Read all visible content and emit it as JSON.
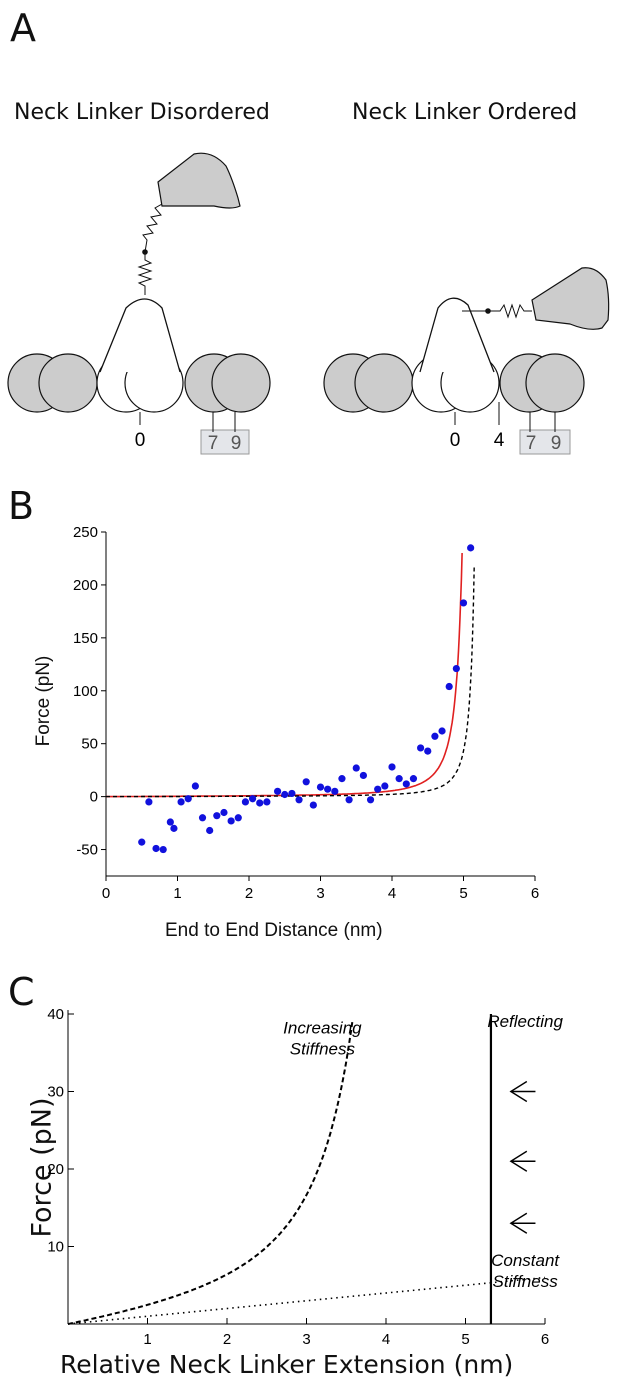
{
  "panels": {
    "a": {
      "letter": "A",
      "left_title": "Neck Linker Disordered",
      "right_title": "Neck Linker Ordered",
      "left_positions": [
        "0",
        "7",
        "9"
      ],
      "right_positions": [
        "0",
        "4",
        "7",
        "9"
      ]
    },
    "b": {
      "letter": "B"
    },
    "c": {
      "letter": "C"
    }
  },
  "colors": {
    "subunit_gray": "#cccccc",
    "highlight_box": "#e4e6ea",
    "fit_curve": "#e02020",
    "data_points": "#1111dd"
  },
  "chart_data": [
    {
      "type": "scatter",
      "panel": "B",
      "xlabel": "End to End Distance (nm)",
      "ylabel": "Force (pN)",
      "xlim": [
        0,
        6
      ],
      "ylim": [
        -75,
        250
      ],
      "xticks": [
        0,
        1,
        2,
        3,
        4,
        5,
        6
      ],
      "yticks": [
        -50,
        0,
        50,
        100,
        150,
        200,
        250
      ],
      "grid": false,
      "points": [
        [
          0.5,
          -43
        ],
        [
          0.6,
          -5
        ],
        [
          0.7,
          -49
        ],
        [
          0.8,
          -50
        ],
        [
          0.9,
          -24
        ],
        [
          0.95,
          -30
        ],
        [
          1.05,
          -5
        ],
        [
          1.15,
          -2
        ],
        [
          1.25,
          10
        ],
        [
          1.35,
          -20
        ],
        [
          1.45,
          -32
        ],
        [
          1.55,
          -18
        ],
        [
          1.65,
          -15
        ],
        [
          1.75,
          -23
        ],
        [
          1.85,
          -20
        ],
        [
          1.95,
          -5
        ],
        [
          2.05,
          -2
        ],
        [
          2.15,
          -6
        ],
        [
          2.25,
          -5
        ],
        [
          2.4,
          5
        ],
        [
          2.5,
          2
        ],
        [
          2.6,
          3
        ],
        [
          2.7,
          -3
        ],
        [
          2.8,
          14
        ],
        [
          2.9,
          -8
        ],
        [
          3.0,
          9
        ],
        [
          3.1,
          7
        ],
        [
          3.2,
          5
        ],
        [
          3.3,
          17
        ],
        [
          3.4,
          -3
        ],
        [
          3.5,
          27
        ],
        [
          3.6,
          20
        ],
        [
          3.7,
          -3
        ],
        [
          3.8,
          7
        ],
        [
          3.9,
          10
        ],
        [
          4.0,
          28
        ],
        [
          4.1,
          17
        ],
        [
          4.2,
          12
        ],
        [
          4.3,
          17
        ],
        [
          4.4,
          46
        ],
        [
          4.5,
          43
        ],
        [
          4.6,
          57
        ],
        [
          4.7,
          62
        ],
        [
          4.8,
          104
        ],
        [
          4.9,
          121
        ],
        [
          5.0,
          183
        ],
        [
          5.1,
          235
        ]
      ],
      "series": [
        {
          "style": "solid",
          "color": "#e02020",
          "model": "fit",
          "L": 5.15,
          "A": 1.0
        },
        {
          "style": "dashed",
          "color": "#000000",
          "model": "reference",
          "L": 5.27,
          "A": 0.45
        }
      ]
    },
    {
      "type": "line",
      "panel": "C",
      "xlabel": "Relative Neck Linker Extension (nm)",
      "ylabel": "Force (pN)",
      "xlim": [
        0,
        6
      ],
      "ylim": [
        0,
        40
      ],
      "xticks": [
        1,
        2,
        3,
        4,
        5,
        6
      ],
      "yticks": [
        10,
        20,
        30,
        40
      ],
      "grid": false,
      "annotations": [
        {
          "text": "Increasing",
          "at": [
            3.2,
            37.5
          ]
        },
        {
          "text": "Stiffness",
          "at": [
            3.2,
            34.8
          ]
        },
        {
          "text": "Reflecting",
          "at": [
            5.75,
            38.3
          ]
        },
        {
          "text": "Constant",
          "at": [
            5.75,
            7.5
          ]
        },
        {
          "text": "Stiffness",
          "at": [
            5.75,
            4.8
          ]
        }
      ],
      "series": [
        {
          "style": "dashed",
          "label": "Increasing Stiffness",
          "model": "wlc",
          "L": 4.55,
          "A": 6.5,
          "xmax": 4.1
        },
        {
          "style": "dotted",
          "label": "Constant Stiffness",
          "model": "linear",
          "slope": 1.0,
          "xmax": 6.0
        },
        {
          "style": "solid",
          "label": "Reflecting",
          "model": "wall",
          "x": 5.32
        }
      ],
      "arrows_at_force": [
        30,
        21,
        13
      ]
    }
  ]
}
